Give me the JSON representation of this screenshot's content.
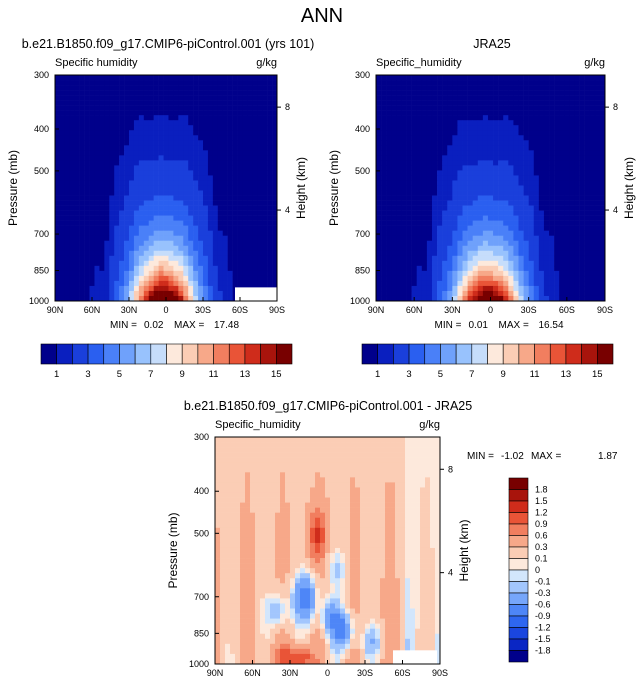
{
  "page_title": "ANN",
  "colors": {
    "absolute_scale": [
      "#00008b",
      "#0a1fbf",
      "#1a3fdb",
      "#2a5ff0",
      "#4a80f8",
      "#6fa1fb",
      "#98c2fd",
      "#c6ddfb",
      "#fde9dc",
      "#fbcdb5",
      "#f7a889",
      "#f17e5f",
      "#e95437",
      "#cf2c1b",
      "#a8140c",
      "#780000"
    ],
    "difference_scale": [
      "#00008b",
      "#0a26c4",
      "#1a46df",
      "#2e66f0",
      "#4e86f7",
      "#76a6fb",
      "#a2c6fd",
      "#d2e6fc",
      "#fde9dc",
      "#fbcdb5",
      "#f7a889",
      "#f17e5f",
      "#e95437",
      "#cf2c1b",
      "#a8140c",
      "#780000"
    ]
  },
  "chart_data": [
    {
      "type": "contour",
      "title": "b.e21.B1850.f09_g17.CMIP6-piControl.001 (yrs 101)",
      "left_label": "Specific humidity",
      "right_label": "g/kg",
      "xlabel": "",
      "ylabel": "Pressure (mb)",
      "ylabel_right": "Height (km)",
      "x_ticks": [
        "90N",
        "60N",
        "30N",
        "0",
        "30S",
        "60S",
        "90S"
      ],
      "y_ticks": [
        "300",
        "400",
        "500",
        "700",
        "850",
        "1000"
      ],
      "y_right_ticks": [
        "8",
        "4"
      ],
      "y_scale": "log",
      "ylim": [
        1000,
        300
      ],
      "xlim": [
        90,
        -90
      ],
      "min_label": "MIN =",
      "min_value": "0.02",
      "max_label": "MAX =",
      "max_value": "17.48",
      "field": {
        "peak_latitude": 2,
        "peak_value": 17.48
      },
      "colorbar": {
        "levels": [
          0.5,
          1,
          2,
          3,
          4,
          5,
          6,
          7,
          8,
          9,
          10,
          11,
          12,
          13,
          14,
          15
        ],
        "tick_labels": [
          "1",
          "3",
          "5",
          "7",
          "9",
          "11",
          "13",
          "15"
        ],
        "placement": "bottom"
      }
    },
    {
      "type": "contour",
      "title": "JRA25",
      "left_label": "Specific_humidity",
      "right_label": "g/kg",
      "xlabel": "",
      "ylabel": "Pressure (mb)",
      "ylabel_right": "Height (km)",
      "x_ticks": [
        "90N",
        "60N",
        "30N",
        "0",
        "30S",
        "60S",
        "90S"
      ],
      "y_ticks": [
        "300",
        "400",
        "500",
        "700",
        "850",
        "1000"
      ],
      "y_right_ticks": [
        "8",
        "4"
      ],
      "y_scale": "log",
      "ylim": [
        1000,
        300
      ],
      "xlim": [
        90,
        -90
      ],
      "min_label": "MIN =",
      "min_value": "0.01",
      "max_label": "MAX =",
      "max_value": "16.54",
      "field": {
        "peak_latitude": 2,
        "peak_value": 16.54
      },
      "colorbar": {
        "levels": [
          0.5,
          1,
          2,
          3,
          4,
          5,
          6,
          7,
          8,
          9,
          10,
          11,
          12,
          13,
          14,
          15
        ],
        "tick_labels": [
          "1",
          "3",
          "5",
          "7",
          "9",
          "11",
          "13",
          "15"
        ],
        "placement": "bottom"
      }
    },
    {
      "type": "contour",
      "title": "b.e21.B1850.f09_g17.CMIP6-piControl.001 - JRA25",
      "left_label": "Specific_humidity",
      "right_label": "g/kg",
      "xlabel": "",
      "ylabel": "Pressure (mb)",
      "ylabel_right": "Height (km)",
      "x_ticks": [
        "90N",
        "60N",
        "30N",
        "0",
        "30S",
        "60S",
        "90S"
      ],
      "y_ticks": [
        "300",
        "400",
        "500",
        "700",
        "850",
        "1000"
      ],
      "y_right_ticks": [
        "8",
        "4"
      ],
      "y_scale": "log",
      "ylim": [
        1000,
        300
      ],
      "xlim": [
        90,
        -90
      ],
      "min_label": "MIN =",
      "min_value": "-1.02",
      "max_label": "MAX =",
      "max_value": "1.87",
      "colorbar": {
        "levels": [
          -1.8,
          -1.5,
          -1.2,
          -0.9,
          -0.6,
          -0.3,
          -0.1,
          0,
          0.1,
          0.3,
          0.6,
          0.9,
          1.2,
          1.5,
          1.8
        ],
        "tick_labels": [
          "1.8",
          "1.5",
          "1.2",
          "0.9",
          "0.6",
          "0.3",
          "0.1",
          "0",
          "-0.1",
          "-0.3",
          "-0.6",
          "-0.9",
          "-1.2",
          "-1.5",
          "-1.8"
        ],
        "placement": "right"
      }
    }
  ]
}
